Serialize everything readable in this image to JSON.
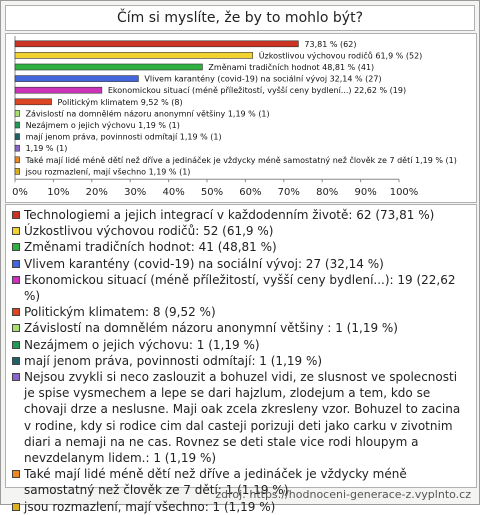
{
  "chart_data": {
    "type": "bar",
    "orientation": "horizontal",
    "title": "Čím si myslíte, že by to mohlo být?",
    "values": [
      73.81,
      61.9,
      48.81,
      32.14,
      22.62,
      9.52,
      1.19,
      1.19,
      1.19,
      1.19,
      1.19,
      1.19
    ],
    "value_labels": [
      "73,81 % (62)",
      "Úzkostlivou výchovou rodičů 61,9 % (52)",
      "Změnami tradičních hodnot 48,81 % (41)",
      "Vlivem karantény (covid-19) na sociální vývoj 32,14 % (27)",
      "Ekonomickou situací (méně příležitostí, vyšší ceny bydlení...) 22,62 % (19)",
      "Politickým klimatem 9,52 % (8)",
      "Závislostí na domnělém názoru anonymní většiny  1,19 % (1)",
      "Nezájmem o jejich výchovu 1,19 % (1)",
      "mají jenom práva, povinnosti odmítají 1,19 % (1)",
      "1,19 % (1)",
      "Také mají lidé méně dětí než dříve a jedináček je vždycky méně samostatný než člověk ze 7 dětí 1,19 % (1)",
      "jsou rozmazlení, mají všechno 1,19 % (1)"
    ],
    "colors": [
      "#cc3322",
      "#f2d230",
      "#30b040",
      "#4466dd",
      "#cc33bb",
      "#dd4422",
      "#a8e070",
      "#229955",
      "#1f5f66",
      "#8866cc",
      "#ee8822",
      "#ddb022"
    ],
    "legend": [
      "Technologiemi a jejich integrací v každodenním životě: 62 (73,81 %)",
      "Úzkostlivou výchovou rodičů: 52 (61,9 %)",
      "Změnami tradičních hodnot: 41 (48,81 %)",
      "Vlivem karantény (covid-19) na sociální vývoj: 27 (32,14 %)",
      "Ekonomickou situací (méně příležitostí, vyšší ceny bydlení...): 19 (22,62 %)",
      "Politickým klimatem: 8 (9,52 %)",
      "Závislostí na domnělém názoru anonymní většiny : 1 (1,19 %)",
      "Nezájmem o jejich výchovu: 1 (1,19 %)",
      "mají jenom práva, povinnosti odmítají: 1 (1,19 %)",
      "Nejsou zvykli si neco zaslouzit a bohuzel vidi, ze slusnost ve spolecnosti je spise vysmechem a lepe se dari hajzlum, zlodejum a tem, kdo se chovaji drze a neslusne. Maji oak zcela zkresleny vzor. Bohuzel to zacina v rodine, kdy si rodice cim dal casteji porizuji deti jako carku v zivotnim diari a nemaji na ne cas. Rovnez se deti stale vice rodi hloupym a nevzdelanym lidem.: 1 (1,19 %)",
      "Také mají lidé méně dětí než dříve a jedináček je vždycky méně samostatný než člověk ze 7 dětí: 1 (1,19 %)",
      "jsou rozmazlení, mají všechno: 1 (1,19 %)"
    ],
    "xlim": [
      0,
      100
    ],
    "xticks": [
      {
        "value": 0,
        "label": "0%"
      },
      {
        "value": 10,
        "label": "10%"
      },
      {
        "value": 20,
        "label": "20%"
      },
      {
        "value": 30,
        "label": "30%"
      },
      {
        "value": 40,
        "label": "40%"
      },
      {
        "value": 50,
        "label": "50%"
      },
      {
        "value": 60,
        "label": "60%"
      },
      {
        "value": 70,
        "label": "70%"
      },
      {
        "value": 80,
        "label": "80%"
      },
      {
        "value": 90,
        "label": "90%"
      },
      {
        "value": 100,
        "label": "100%"
      }
    ],
    "source": "zdroj: https://hodnoceni-generace-z.vyplnto.cz"
  }
}
